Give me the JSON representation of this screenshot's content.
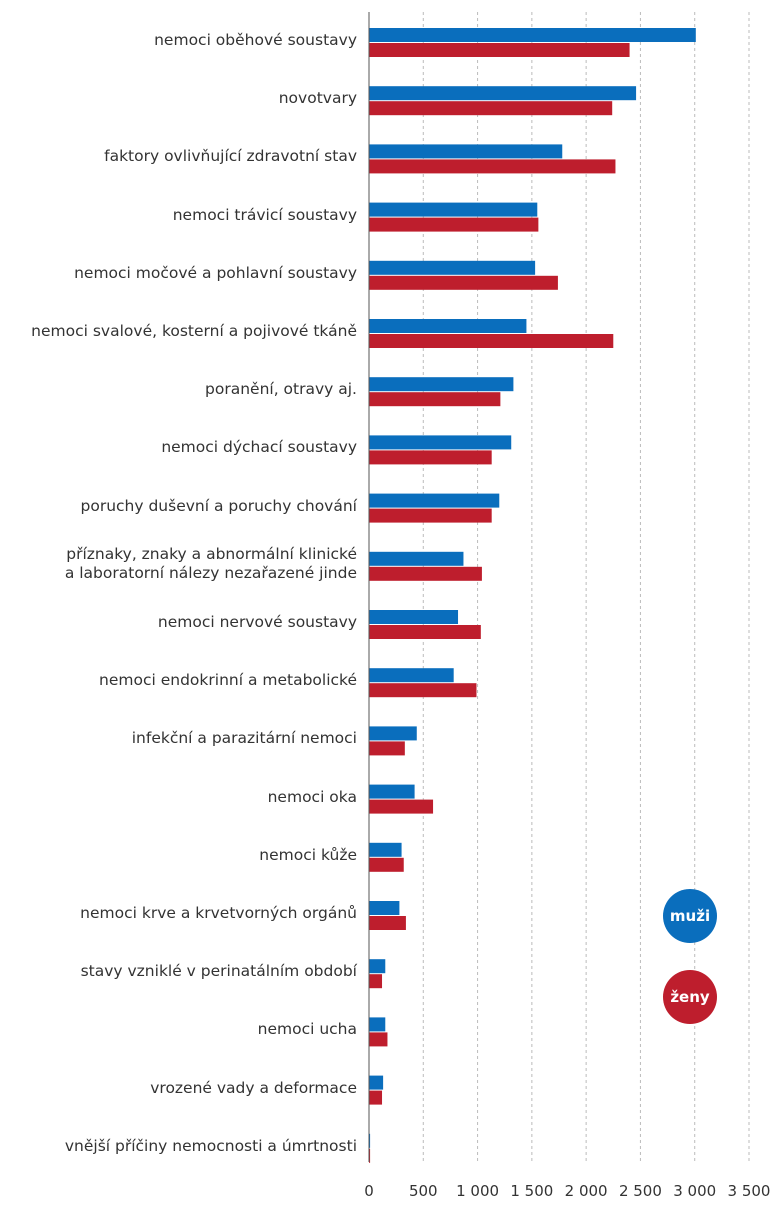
{
  "colors": {
    "muzi": "#0a6ebd",
    "zeny": "#be1e2d",
    "grid": "#bbbbbb",
    "axis": "#555555"
  },
  "legend": {
    "muzi_label": "muži",
    "zeny_label": "ženy"
  },
  "chart_data": {
    "type": "bar",
    "orientation": "horizontal",
    "categories": [
      "nemoci oběhové soustavy",
      "novotvary",
      "faktory ovlivňující zdravotní stav",
      "nemoci trávicí soustavy",
      "nemoci močové a pohlavní soustavy",
      "nemoci svalové, kosterní a pojivové tkáně",
      "poranění, otravy aj.",
      "nemoci dýchací soustavy",
      "poruchy duševní a poruchy chování",
      "příznaky, znaky a abnormální klinické\na laboratorní nálezy nezařazené jinde",
      "nemoci nervové soustavy",
      "nemoci endokrinní a metabolické",
      "infekční a parazitární nemoci",
      "nemoci oka",
      "nemoci kůže",
      "nemoci krve a krvetvorných orgánů",
      "stavy vzniklé v perinatálním období",
      "nemoci ucha",
      "vrozené vady a deformace",
      "vnější příčiny nemocnosti a úmrtnosti"
    ],
    "series": [
      {
        "name": "muži",
        "color": "#0a6ebd",
        "values": [
          3010,
          2460,
          1780,
          1550,
          1530,
          1450,
          1330,
          1310,
          1200,
          870,
          820,
          780,
          440,
          420,
          300,
          280,
          150,
          150,
          130,
          10
        ]
      },
      {
        "name": "ženy",
        "color": "#be1e2d",
        "values": [
          2400,
          2240,
          2270,
          1560,
          1740,
          2250,
          1210,
          1130,
          1130,
          1040,
          1030,
          990,
          330,
          590,
          320,
          340,
          120,
          170,
          120,
          10
        ]
      }
    ],
    "xlim": [
      0,
      3500
    ],
    "xticks": [
      0,
      500,
      1000,
      1500,
      2000,
      2500,
      3000,
      3500
    ],
    "xtick_labels": [
      "0",
      "500",
      "1 000",
      "1 500",
      "2 000",
      "2 500",
      "3 000",
      "3 500"
    ],
    "grid": true,
    "legend_position": "bottom-right"
  }
}
